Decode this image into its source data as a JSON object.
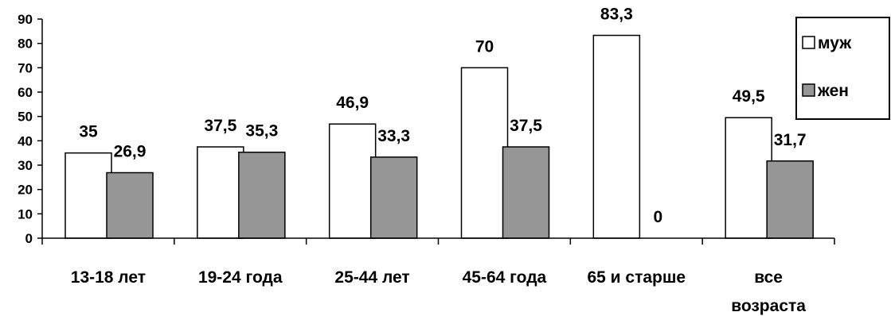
{
  "chart_data": {
    "type": "bar",
    "categories": [
      "13-18 лет",
      "19-24 года",
      "25-44 лет",
      "45-64 года",
      "65 и старше",
      "все возраста"
    ],
    "series": [
      {
        "name": "муж",
        "values": [
          35,
          37.5,
          46.9,
          70,
          83.3,
          49.5
        ],
        "labels": [
          "35",
          "37,5",
          "46,9",
          "70",
          "83,3",
          "49,5"
        ],
        "color": "#ffffff"
      },
      {
        "name": "жен",
        "values": [
          26.9,
          35.3,
          33.3,
          37.5,
          0,
          31.7
        ],
        "labels": [
          "26,9",
          "35,3",
          "33,3",
          "37,5",
          "0",
          "31,7"
        ],
        "color": "#969696"
      }
    ],
    "ylim": [
      0,
      90
    ],
    "yticks": [
      "0",
      "10",
      "20",
      "30",
      "40",
      "50",
      "60",
      "70",
      "80",
      "90"
    ],
    "xlabel": "",
    "ylabel": "",
    "title": "",
    "grid": false,
    "legend": "right"
  }
}
